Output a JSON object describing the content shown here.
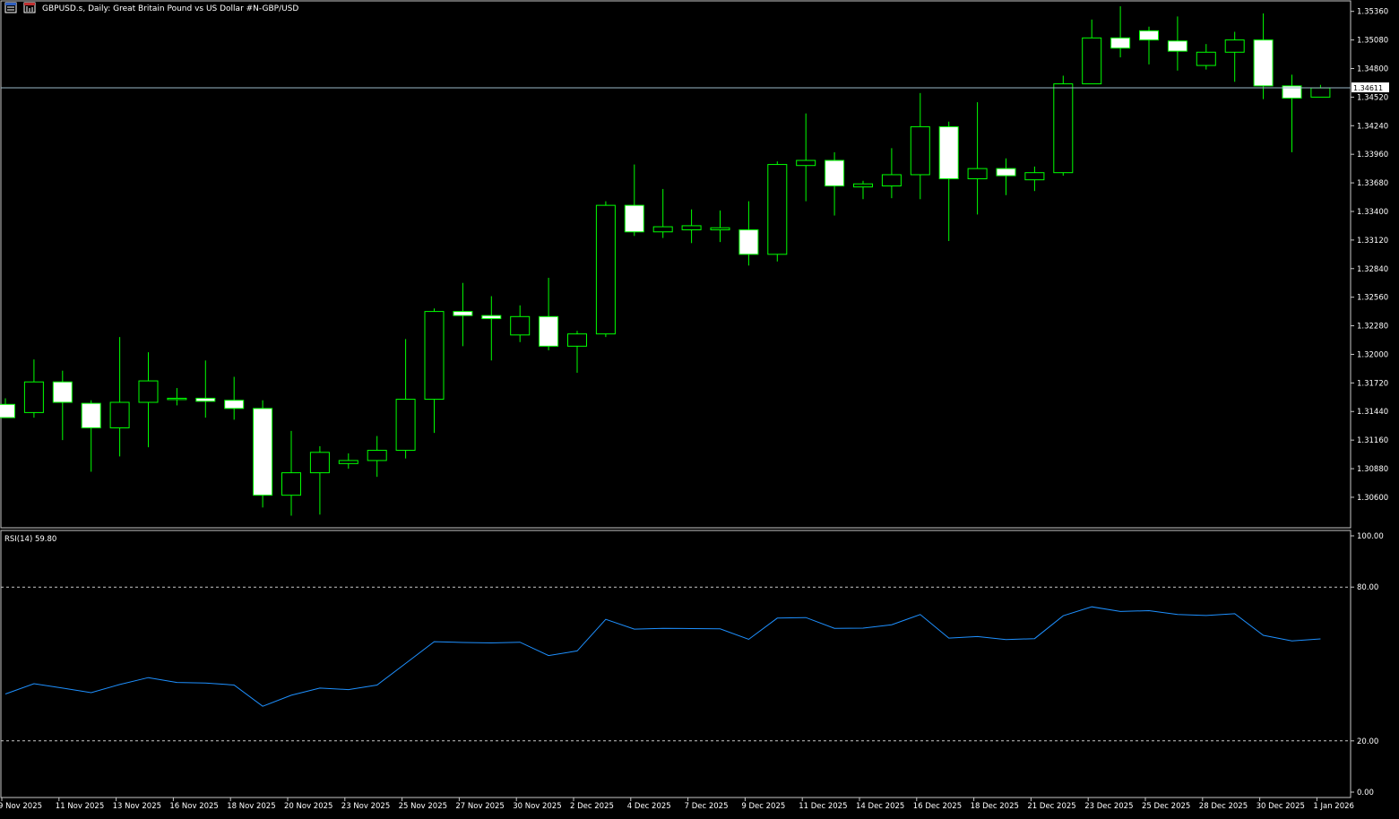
{
  "header": {
    "title": "GBPUSD.s, Daily:  Great Britain Pound vs US Dollar #N-GBP/USD",
    "icons": [
      "window-list-icon",
      "chart-type-icon"
    ]
  },
  "colors": {
    "background": "#000000",
    "candle_outline": "#00ff00",
    "bull_fill": "#000000",
    "bear_fill": "#ffffff",
    "rsi_line": "#1e90ff",
    "bid_line": "#9ab9c9",
    "grid_text": "#ffffff",
    "border": "#c8c8c8"
  },
  "chart_data": [
    {
      "type": "candlestick",
      "title": "GBPUSD.s, Daily:  Great Britain Pound vs US Dollar #N-GBP/USD",
      "ylim": [
        1.3038,
        1.3541
      ],
      "yticks": [
        "1.35360",
        "1.35080",
        "1.34800",
        "1.34520",
        "1.34240",
        "1.33960",
        "1.33680",
        "1.33400",
        "1.33120",
        "1.32840",
        "1.32560",
        "1.32280",
        "1.32000",
        "1.31720",
        "1.31440",
        "1.31160",
        "1.30880",
        "1.30600"
      ],
      "current_price": "1.34611",
      "candles": [
        {
          "o": 1.3151,
          "h": 1.3157,
          "l": 1.3138,
          "c": 1.3138
        },
        {
          "o": 1.3143,
          "h": 1.3195,
          "l": 1.3138,
          "c": 1.3173
        },
        {
          "o": 1.3173,
          "h": 1.3184,
          "l": 1.3116,
          "c": 1.3153
        },
        {
          "o": 1.3152,
          "h": 1.3155,
          "l": 1.3085,
          "c": 1.3128
        },
        {
          "o": 1.3128,
          "h": 1.3217,
          "l": 1.31,
          "c": 1.3153
        },
        {
          "o": 1.3153,
          "h": 1.3202,
          "l": 1.3109,
          "c": 1.3174
        },
        {
          "o": 1.3157,
          "h": 1.3167,
          "l": 1.315,
          "c": 1.3157
        },
        {
          "o": 1.3157,
          "h": 1.3194,
          "l": 1.3138,
          "c": 1.3154
        },
        {
          "o": 1.3155,
          "h": 1.3178,
          "l": 1.3136,
          "c": 1.3147
        },
        {
          "o": 1.3147,
          "h": 1.3155,
          "l": 1.305,
          "c": 1.3062
        },
        {
          "o": 1.3062,
          "h": 1.3125,
          "l": 1.3042,
          "c": 1.3084
        },
        {
          "o": 1.3084,
          "h": 1.311,
          "l": 1.3043,
          "c": 1.3104
        },
        {
          "o": 1.3093,
          "h": 1.3103,
          "l": 1.3088,
          "c": 1.3096
        },
        {
          "o": 1.3096,
          "h": 1.312,
          "l": 1.308,
          "c": 1.3106
        },
        {
          "o": 1.3106,
          "h": 1.3215,
          "l": 1.3098,
          "c": 1.3156
        },
        {
          "o": 1.3156,
          "h": 1.3245,
          "l": 1.3123,
          "c": 1.3242
        },
        {
          "o": 1.3242,
          "h": 1.327,
          "l": 1.3208,
          "c": 1.3238
        },
        {
          "o": 1.3238,
          "h": 1.3257,
          "l": 1.3194,
          "c": 1.3235
        },
        {
          "o": 1.3219,
          "h": 1.3248,
          "l": 1.3212,
          "c": 1.3237
        },
        {
          "o": 1.3237,
          "h": 1.3275,
          "l": 1.3204,
          "c": 1.3208
        },
        {
          "o": 1.3208,
          "h": 1.3223,
          "l": 1.3182,
          "c": 1.322
        },
        {
          "o": 1.322,
          "h": 1.335,
          "l": 1.3217,
          "c": 1.3346
        },
        {
          "o": 1.3346,
          "h": 1.3386,
          "l": 1.3316,
          "c": 1.332
        },
        {
          "o": 1.332,
          "h": 1.3362,
          "l": 1.3314,
          "c": 1.3325
        },
        {
          "o": 1.3322,
          "h": 1.3342,
          "l": 1.3309,
          "c": 1.3326
        },
        {
          "o": 1.3322,
          "h": 1.3341,
          "l": 1.331,
          "c": 1.3324
        },
        {
          "o": 1.3322,
          "h": 1.335,
          "l": 1.3287,
          "c": 1.3298
        },
        {
          "o": 1.3298,
          "h": 1.3389,
          "l": 1.3291,
          "c": 1.3386
        },
        {
          "o": 1.3385,
          "h": 1.3436,
          "l": 1.335,
          "c": 1.339
        },
        {
          "o": 1.339,
          "h": 1.3398,
          "l": 1.3336,
          "c": 1.3365
        },
        {
          "o": 1.3364,
          "h": 1.337,
          "l": 1.3352,
          "c": 1.3367
        },
        {
          "o": 1.3365,
          "h": 1.3402,
          "l": 1.3353,
          "c": 1.3376
        },
        {
          "o": 1.3376,
          "h": 1.3456,
          "l": 1.3352,
          "c": 1.3423
        },
        {
          "o": 1.3423,
          "h": 1.3428,
          "l": 1.3311,
          "c": 1.3372
        },
        {
          "o": 1.3372,
          "h": 1.3447,
          "l": 1.3337,
          "c": 1.3382
        },
        {
          "o": 1.3382,
          "h": 1.3392,
          "l": 1.3356,
          "c": 1.3375
        },
        {
          "o": 1.3371,
          "h": 1.3384,
          "l": 1.336,
          "c": 1.3378
        },
        {
          "o": 1.3378,
          "h": 1.3473,
          "l": 1.3375,
          "c": 1.3465
        },
        {
          "o": 1.3465,
          "h": 1.3528,
          "l": 1.3465,
          "c": 1.351
        },
        {
          "o": 1.351,
          "h": 1.3541,
          "l": 1.3491,
          "c": 1.35
        },
        {
          "o": 1.3517,
          "h": 1.3521,
          "l": 1.3484,
          "c": 1.3508
        },
        {
          "o": 1.3507,
          "h": 1.3531,
          "l": 1.3478,
          "c": 1.3497
        },
        {
          "o": 1.3483,
          "h": 1.3504,
          "l": 1.3479,
          "c": 1.3496
        },
        {
          "o": 1.3496,
          "h": 1.3516,
          "l": 1.3467,
          "c": 1.3508
        },
        {
          "o": 1.3508,
          "h": 1.3534,
          "l": 1.345,
          "c": 1.3463
        },
        {
          "o": 1.3463,
          "h": 1.3474,
          "l": 1.3398,
          "c": 1.3451
        },
        {
          "o": 1.3452,
          "h": 1.3464,
          "l": 1.3452,
          "c": 1.3461
        }
      ]
    },
    {
      "type": "line",
      "title": "RSI(14) 59.80",
      "ylim": [
        0,
        100
      ],
      "yticks": [
        "100.00",
        "80.00",
        "20.00",
        "0.00"
      ],
      "levels": [
        80,
        20
      ],
      "values": [
        38.3,
        42.3,
        40.6,
        38.8,
        42.0,
        44.7,
        42.8,
        42.6,
        41.8,
        33.5,
        37.8,
        40.6,
        40.0,
        41.8,
        50.2,
        58.7,
        58.4,
        58.2,
        58.5,
        53.3,
        55.1,
        67.4,
        63.6,
        63.9,
        63.8,
        63.7,
        59.6,
        67.9,
        68.1,
        63.9,
        64.0,
        65.3,
        69.3,
        60.1,
        60.7,
        59.5,
        59.9,
        68.8,
        72.3,
        70.5,
        70.8,
        69.3,
        68.9,
        69.6,
        61.2,
        59.0,
        59.8
      ],
      "x_labels": [
        "9 Nov 2025",
        "11 Nov 2025",
        "13 Nov 2025",
        "16 Nov 2025",
        "18 Nov 2025",
        "20 Nov 2025",
        "23 Nov 2025",
        "25 Nov 2025",
        "27 Nov 2025",
        "30 Nov 2025",
        "2 Dec 2025",
        "4 Dec 2025",
        "7 Dec 2025",
        "9 Dec 2025",
        "11 Dec 2025",
        "14 Dec 2025",
        "16 Dec 2025",
        "18 Dec 2025",
        "21 Dec 2025",
        "23 Dec 2025",
        "25 Dec 2025",
        "28 Dec 2025",
        "30 Dec 2025",
        "1 Jan 2026"
      ]
    }
  ]
}
